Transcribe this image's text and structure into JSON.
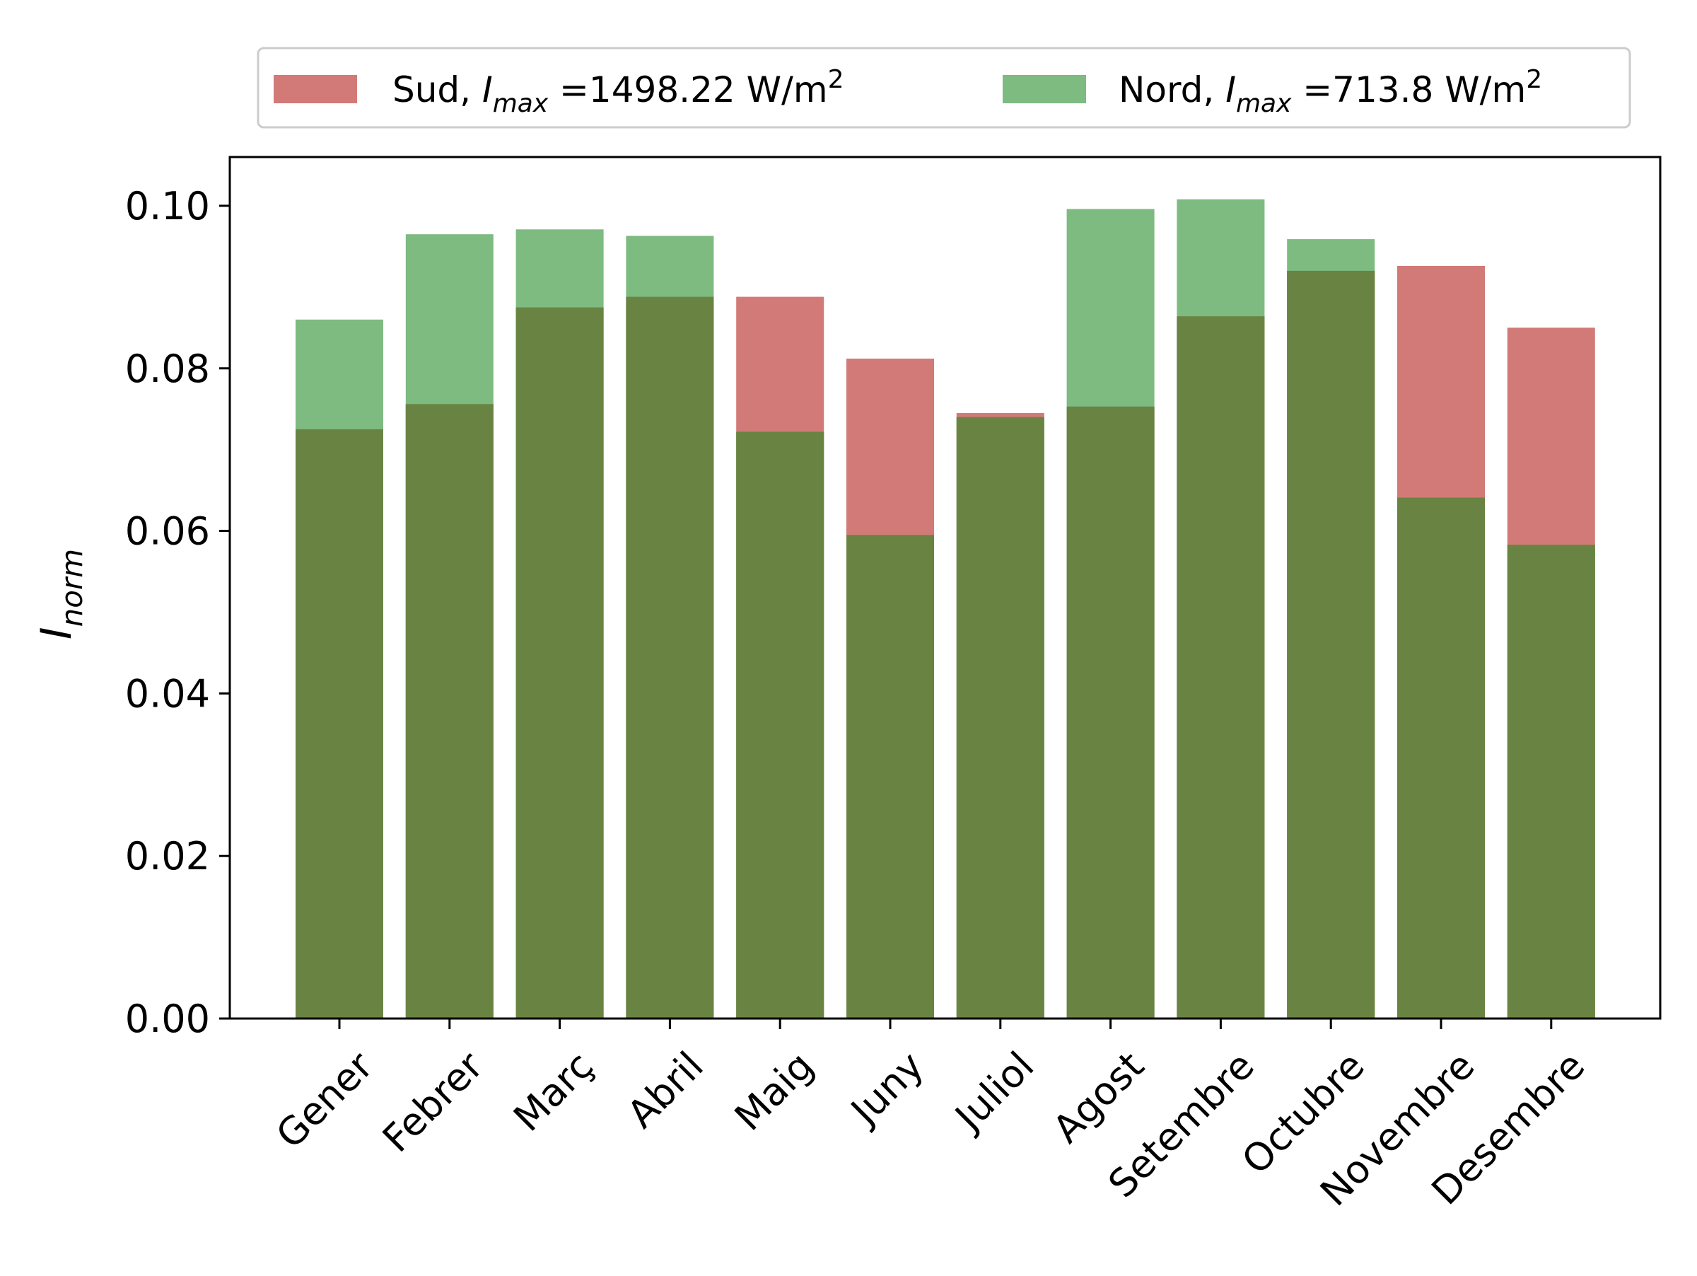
{
  "chart_data": {
    "type": "bar",
    "categories": [
      "Gener",
      "Febrer",
      "Març",
      "Abril",
      "Maig",
      "Juny",
      "Juliol",
      "Agost",
      "Setembre",
      "Octubre",
      "Novembre",
      "Desembre"
    ],
    "series": [
      {
        "name": "Sud, I_max =1498.22 W/m^2",
        "legend": {
          "prefix": "Sud, ",
          "symbol": "I",
          "subscript": "max",
          "middle": " =1498.22 W/m",
          "superscript": "2"
        },
        "color": "#cd6b68",
        "opacity": 0.9,
        "values": [
          0.0725,
          0.0756,
          0.0875,
          0.0888,
          0.0888,
          0.0812,
          0.0745,
          0.0753,
          0.0864,
          0.092,
          0.0926,
          0.085
        ]
      },
      {
        "name": "Nord, I_max =713.8 W/m^2",
        "legend": {
          "prefix": "Nord, ",
          "symbol": "I",
          "subscript": "max",
          "middle": " =713.8 W/m",
          "superscript": "2"
        },
        "color": "#6fb472",
        "opacity": 0.9,
        "values": [
          0.086,
          0.0965,
          0.0971,
          0.0963,
          0.0722,
          0.0595,
          0.074,
          0.0996,
          0.1008,
          0.0959,
          0.0641,
          0.0583
        ]
      }
    ],
    "overlap_color": "#698442",
    "ylabel": {
      "symbol": "I",
      "subscript": "norm"
    },
    "xlabel": "",
    "ylim": [
      0,
      0.106
    ],
    "yticks": [
      0.0,
      0.02,
      0.04,
      0.06,
      0.08,
      0.1
    ],
    "ytick_labels": [
      "0.00",
      "0.02",
      "0.04",
      "0.06",
      "0.08",
      "0.10"
    ],
    "xtick_rotation": 45,
    "grid": false,
    "legend_position": "top-center"
  }
}
